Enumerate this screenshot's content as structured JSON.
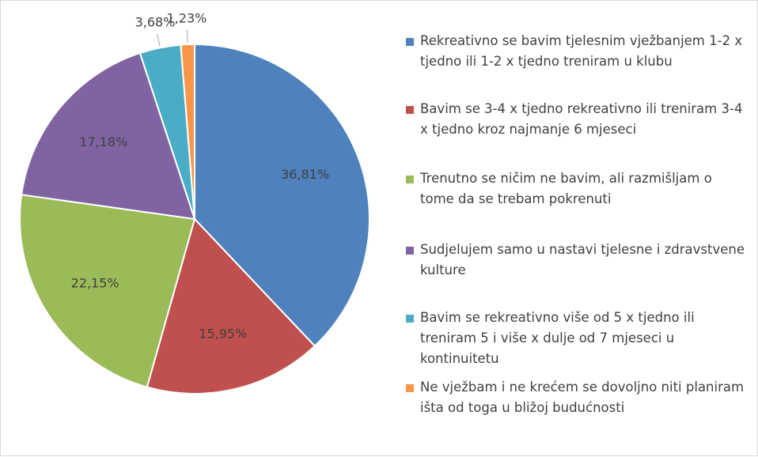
{
  "chart_data": {
    "type": "pie",
    "categories": [
      "Rekreativno se bavim tjelesnim vježbanjem 1-2 x tjedno ili 1-2 x tjedno treniram u klubu",
      "Bavim se 3-4 x tjedno rekreativno ili treniram 3-4 x tjedno kroz najmanje 6 mjeseci",
      "Trenutno se ničim ne bavim, ali razmišljam o tome da se trebam pokrenuti",
      "Sudjelujem samo u nastavi tjelesne i zdravstvene kulture",
      "Bavim se rekreativno više od 5 x tjedno ili treniram 5 i više x dulje od 7 mjeseci u kontinuitetu",
      "Ne vježbam i ne krećem se dovoljno niti planiram išta od toga u bližoj budućnosti"
    ],
    "values": [
      36.81,
      15.95,
      22.15,
      17.18,
      3.68,
      1.23
    ],
    "value_labels": [
      "36,81%",
      "15,95%",
      "22,15%",
      "17,18%",
      "3,68%",
      "1,23%"
    ],
    "colors": [
      "#4f81bd",
      "#c0504d",
      "#9bbb59",
      "#8064a2",
      "#4bacc6",
      "#f79646"
    ],
    "legend": "right"
  }
}
